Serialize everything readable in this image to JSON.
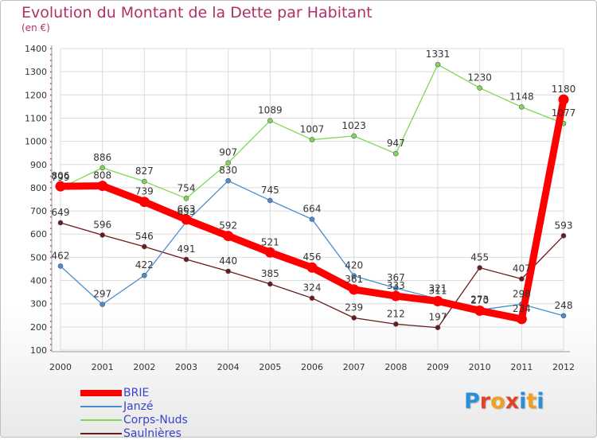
{
  "title": "Evolution du Montant de la Dette par Habitant",
  "subtitle": "(en €)",
  "logo": "Proxiti",
  "colors": {
    "BRIE": "#ff0000",
    "Janzé": "#4a8ccc",
    "Corps-Nuds": "#80d850",
    "Saulnières": "#6a1a1a",
    "axis_text": "#333333",
    "title": "#b0306a"
  },
  "chart_data": {
    "type": "line",
    "title": "Evolution du Montant de la Dette par Habitant",
    "ylabel": "(en €)",
    "xlabel": "",
    "ylim": [
      100,
      1400
    ],
    "yticks": [
      100,
      200,
      300,
      400,
      500,
      600,
      700,
      800,
      900,
      1000,
      1100,
      1200,
      1300,
      1400
    ],
    "grid": true,
    "legend": "bottom-left",
    "x": [
      "2000",
      "2001",
      "2002",
      "2003",
      "2004",
      "2005",
      "2006",
      "2007",
      "2008",
      "2009",
      "2010",
      "2011",
      "2012"
    ],
    "series": [
      {
        "name": "BRIE",
        "values": [
          806,
          808,
          739,
          663,
          592,
          521,
          456,
          361,
          333,
          311,
          270,
          234,
          1180
        ]
      },
      {
        "name": "Janzé",
        "values": [
          462,
          297,
          422,
          653,
          830,
          745,
          664,
          420,
          367,
          321,
          273,
          298,
          248
        ]
      },
      {
        "name": "Corps-Nuds",
        "values": [
          799,
          886,
          827,
          754,
          907,
          1089,
          1007,
          1023,
          947,
          1331,
          1230,
          1148,
          1077
        ]
      },
      {
        "name": "Saulnières",
        "values": [
          649,
          596,
          546,
          491,
          440,
          385,
          324,
          239,
          212,
          197,
          455,
          407,
          593
        ]
      }
    ]
  }
}
